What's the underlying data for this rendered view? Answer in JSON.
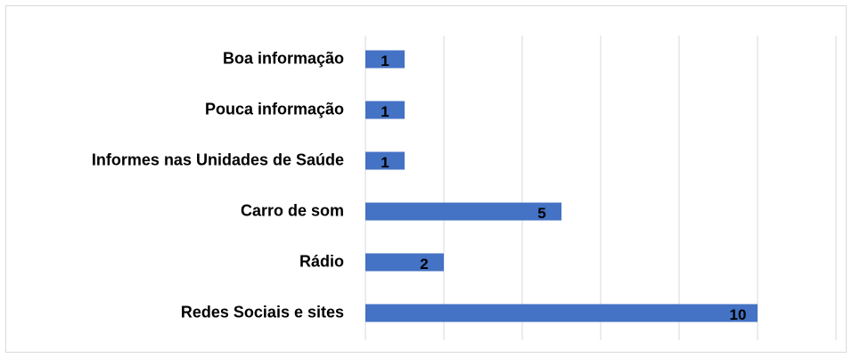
{
  "chart_data": {
    "type": "hbar",
    "categories": [
      "Boa informação",
      "Pouca informação",
      "Informes nas Unidades de Saúde",
      "Carro de som",
      "Rádio",
      "Redes Sociais e sites"
    ],
    "values": [
      1,
      1,
      1,
      5,
      2,
      10
    ],
    "color": "#4472c4",
    "xlim": [
      0,
      12
    ],
    "xticks": [
      0,
      2,
      4,
      6,
      8,
      10,
      12
    ],
    "grid": true
  }
}
